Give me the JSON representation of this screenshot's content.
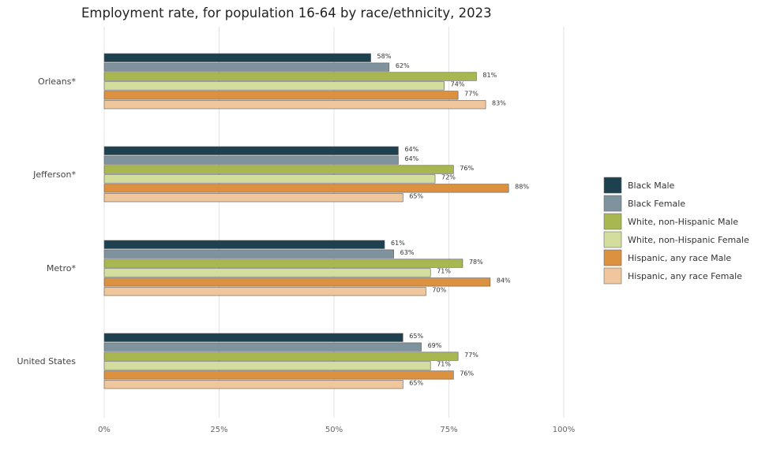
{
  "chart_data": {
    "type": "bar",
    "orientation": "horizontal",
    "title": "Employment rate, for population 16-64 by race/ethnicity, 2023",
    "categories": [
      "Orleans*",
      "Jefferson*",
      "Metro*",
      "United States"
    ],
    "xlim": [
      0,
      100
    ],
    "x_ticks": [
      0,
      25,
      50,
      75,
      100
    ],
    "x_tick_labels": [
      "0%",
      "25%",
      "50%",
      "75%",
      "100%"
    ],
    "grid": true,
    "legend_position": "right",
    "series": [
      {
        "name": "Black Male",
        "color": "#1e4150",
        "values": [
          58,
          64,
          61,
          65
        ],
        "labels": [
          "58%",
          "64%",
          "61%",
          "65%"
        ]
      },
      {
        "name": "Black Female",
        "color": "#7f939f",
        "values": [
          62,
          64,
          63,
          69
        ],
        "labels": [
          "62%",
          "64%",
          "63%",
          "69%"
        ]
      },
      {
        "name": "White, non-Hispanic Male",
        "color": "#a8b750",
        "values": [
          81,
          76,
          78,
          77
        ],
        "labels": [
          "81%",
          "76%",
          "78%",
          "77%"
        ]
      },
      {
        "name": "White, non-Hispanic Female",
        "color": "#d2dd9e",
        "values": [
          74,
          72,
          71,
          71
        ],
        "labels": [
          "74%",
          "72%",
          "71%",
          "71%"
        ]
      },
      {
        "name": "Hispanic, any race Male",
        "color": "#dc9140",
        "values": [
          77,
          88,
          84,
          76
        ],
        "labels": [
          "77%",
          "88%",
          "84%",
          "76%"
        ]
      },
      {
        "name": "Hispanic, any race Female",
        "color": "#f0c79c",
        "values": [
          83,
          65,
          70,
          65
        ],
        "labels": [
          "83%",
          "65%",
          "70%",
          "65%"
        ]
      }
    ]
  }
}
